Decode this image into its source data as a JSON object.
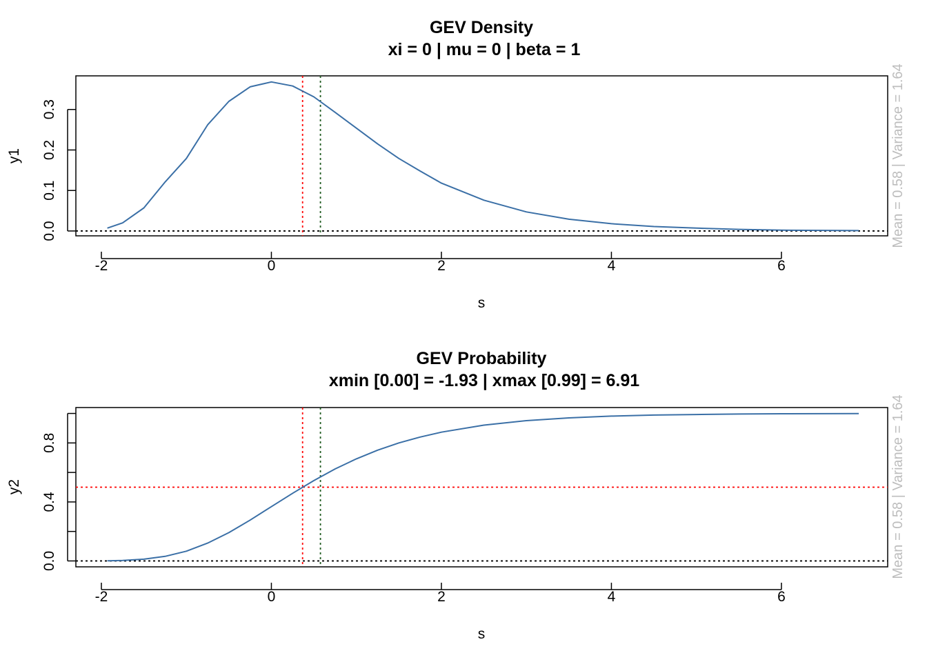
{
  "colors": {
    "curve": "#3a6fa6",
    "quantile_line": "#ff0000",
    "mean_line": "#1f5a1f",
    "baseline": "#000000",
    "side_note": "#bdbdbd"
  },
  "chart_data": [
    {
      "type": "line",
      "title": "GEV Density",
      "subtitle": "xi =  0  |  mu =  0  |  beta =  1",
      "xlabel": "s",
      "ylabel": "y1",
      "side_note": "Mean = 0.58  | Variance =  1.64",
      "xlim": [
        -2.3,
        7.25
      ],
      "ylim": [
        -0.012,
        0.383
      ],
      "x_ticks": [
        -2,
        0,
        2,
        4,
        6
      ],
      "x_tick_labels": [
        "-2",
        "0",
        "2",
        "4",
        "6"
      ],
      "y_ticks": [
        0.0,
        0.1,
        0.2,
        0.3
      ],
      "y_tick_labels": [
        "0.0",
        "0.1",
        "0.2",
        "0.3"
      ],
      "y_minor_ticks": [],
      "series": [
        {
          "x": [
            -1.93,
            -1.75,
            -1.5,
            -1.25,
            -1.0,
            -0.75,
            -0.5,
            -0.25,
            0.0,
            0.25,
            0.5,
            0.75,
            1.0,
            1.25,
            1.5,
            1.75,
            2.0,
            2.5,
            3.0,
            3.5,
            4.0,
            4.5,
            5.0,
            5.5,
            6.0,
            6.5,
            6.91
          ],
          "y": [
            0.007,
            0.02,
            0.057,
            0.121,
            0.179,
            0.262,
            0.32,
            0.356,
            0.368,
            0.358,
            0.331,
            0.293,
            0.254,
            0.215,
            0.179,
            0.148,
            0.118,
            0.076,
            0.047,
            0.029,
            0.018,
            0.011,
            0.007,
            0.004,
            0.002,
            0.0015,
            0.001
          ]
        }
      ],
      "vlines": [
        {
          "x": 0.367,
          "role": "median",
          "color": "#ff0000"
        },
        {
          "x": 0.577,
          "role": "mean",
          "color": "#1f5a1f"
        }
      ],
      "hlines": [
        {
          "y": 0.0,
          "color": "#000000"
        }
      ]
    },
    {
      "type": "line",
      "title": "GEV Probability",
      "subtitle": "xmin [0.00] =  -1.93  |  xmax [0.99] =  6.91",
      "xlabel": "s",
      "ylabel": "y2",
      "side_note": "Mean = 0.58  | Variance =  1.64",
      "xlim": [
        -2.3,
        7.25
      ],
      "ylim": [
        -0.04,
        1.04
      ],
      "x_ticks": [
        -2,
        0,
        2,
        4,
        6
      ],
      "x_tick_labels": [
        "-2",
        "0",
        "2",
        "4",
        "6"
      ],
      "y_ticks": [
        0.0,
        0.4,
        0.8
      ],
      "y_tick_labels": [
        "0.0",
        "0.4",
        "0.8"
      ],
      "y_minor_ticks": [
        0.2,
        0.6,
        1.0
      ],
      "series": [
        {
          "x": [
            -1.93,
            -1.75,
            -1.5,
            -1.25,
            -1.0,
            -0.75,
            -0.5,
            -0.25,
            0.0,
            0.25,
            0.5,
            0.75,
            1.0,
            1.25,
            1.5,
            1.75,
            2.0,
            2.5,
            3.0,
            3.5,
            4.0,
            4.5,
            5.0,
            5.5,
            6.0,
            6.5,
            6.91
          ],
          "y": [
            0.001,
            0.003,
            0.012,
            0.031,
            0.066,
            0.121,
            0.192,
            0.277,
            0.368,
            0.459,
            0.545,
            0.624,
            0.692,
            0.751,
            0.8,
            0.84,
            0.873,
            0.921,
            0.951,
            0.97,
            0.982,
            0.989,
            0.993,
            0.996,
            0.998,
            0.9985,
            0.999
          ]
        }
      ],
      "vlines": [
        {
          "x": 0.367,
          "role": "median",
          "color": "#ff0000"
        },
        {
          "x": 0.577,
          "role": "mean",
          "color": "#1f5a1f"
        }
      ],
      "hlines": [
        {
          "y": 0.5,
          "color": "#ff0000"
        },
        {
          "y": 0.0,
          "color": "#000000"
        }
      ]
    }
  ]
}
